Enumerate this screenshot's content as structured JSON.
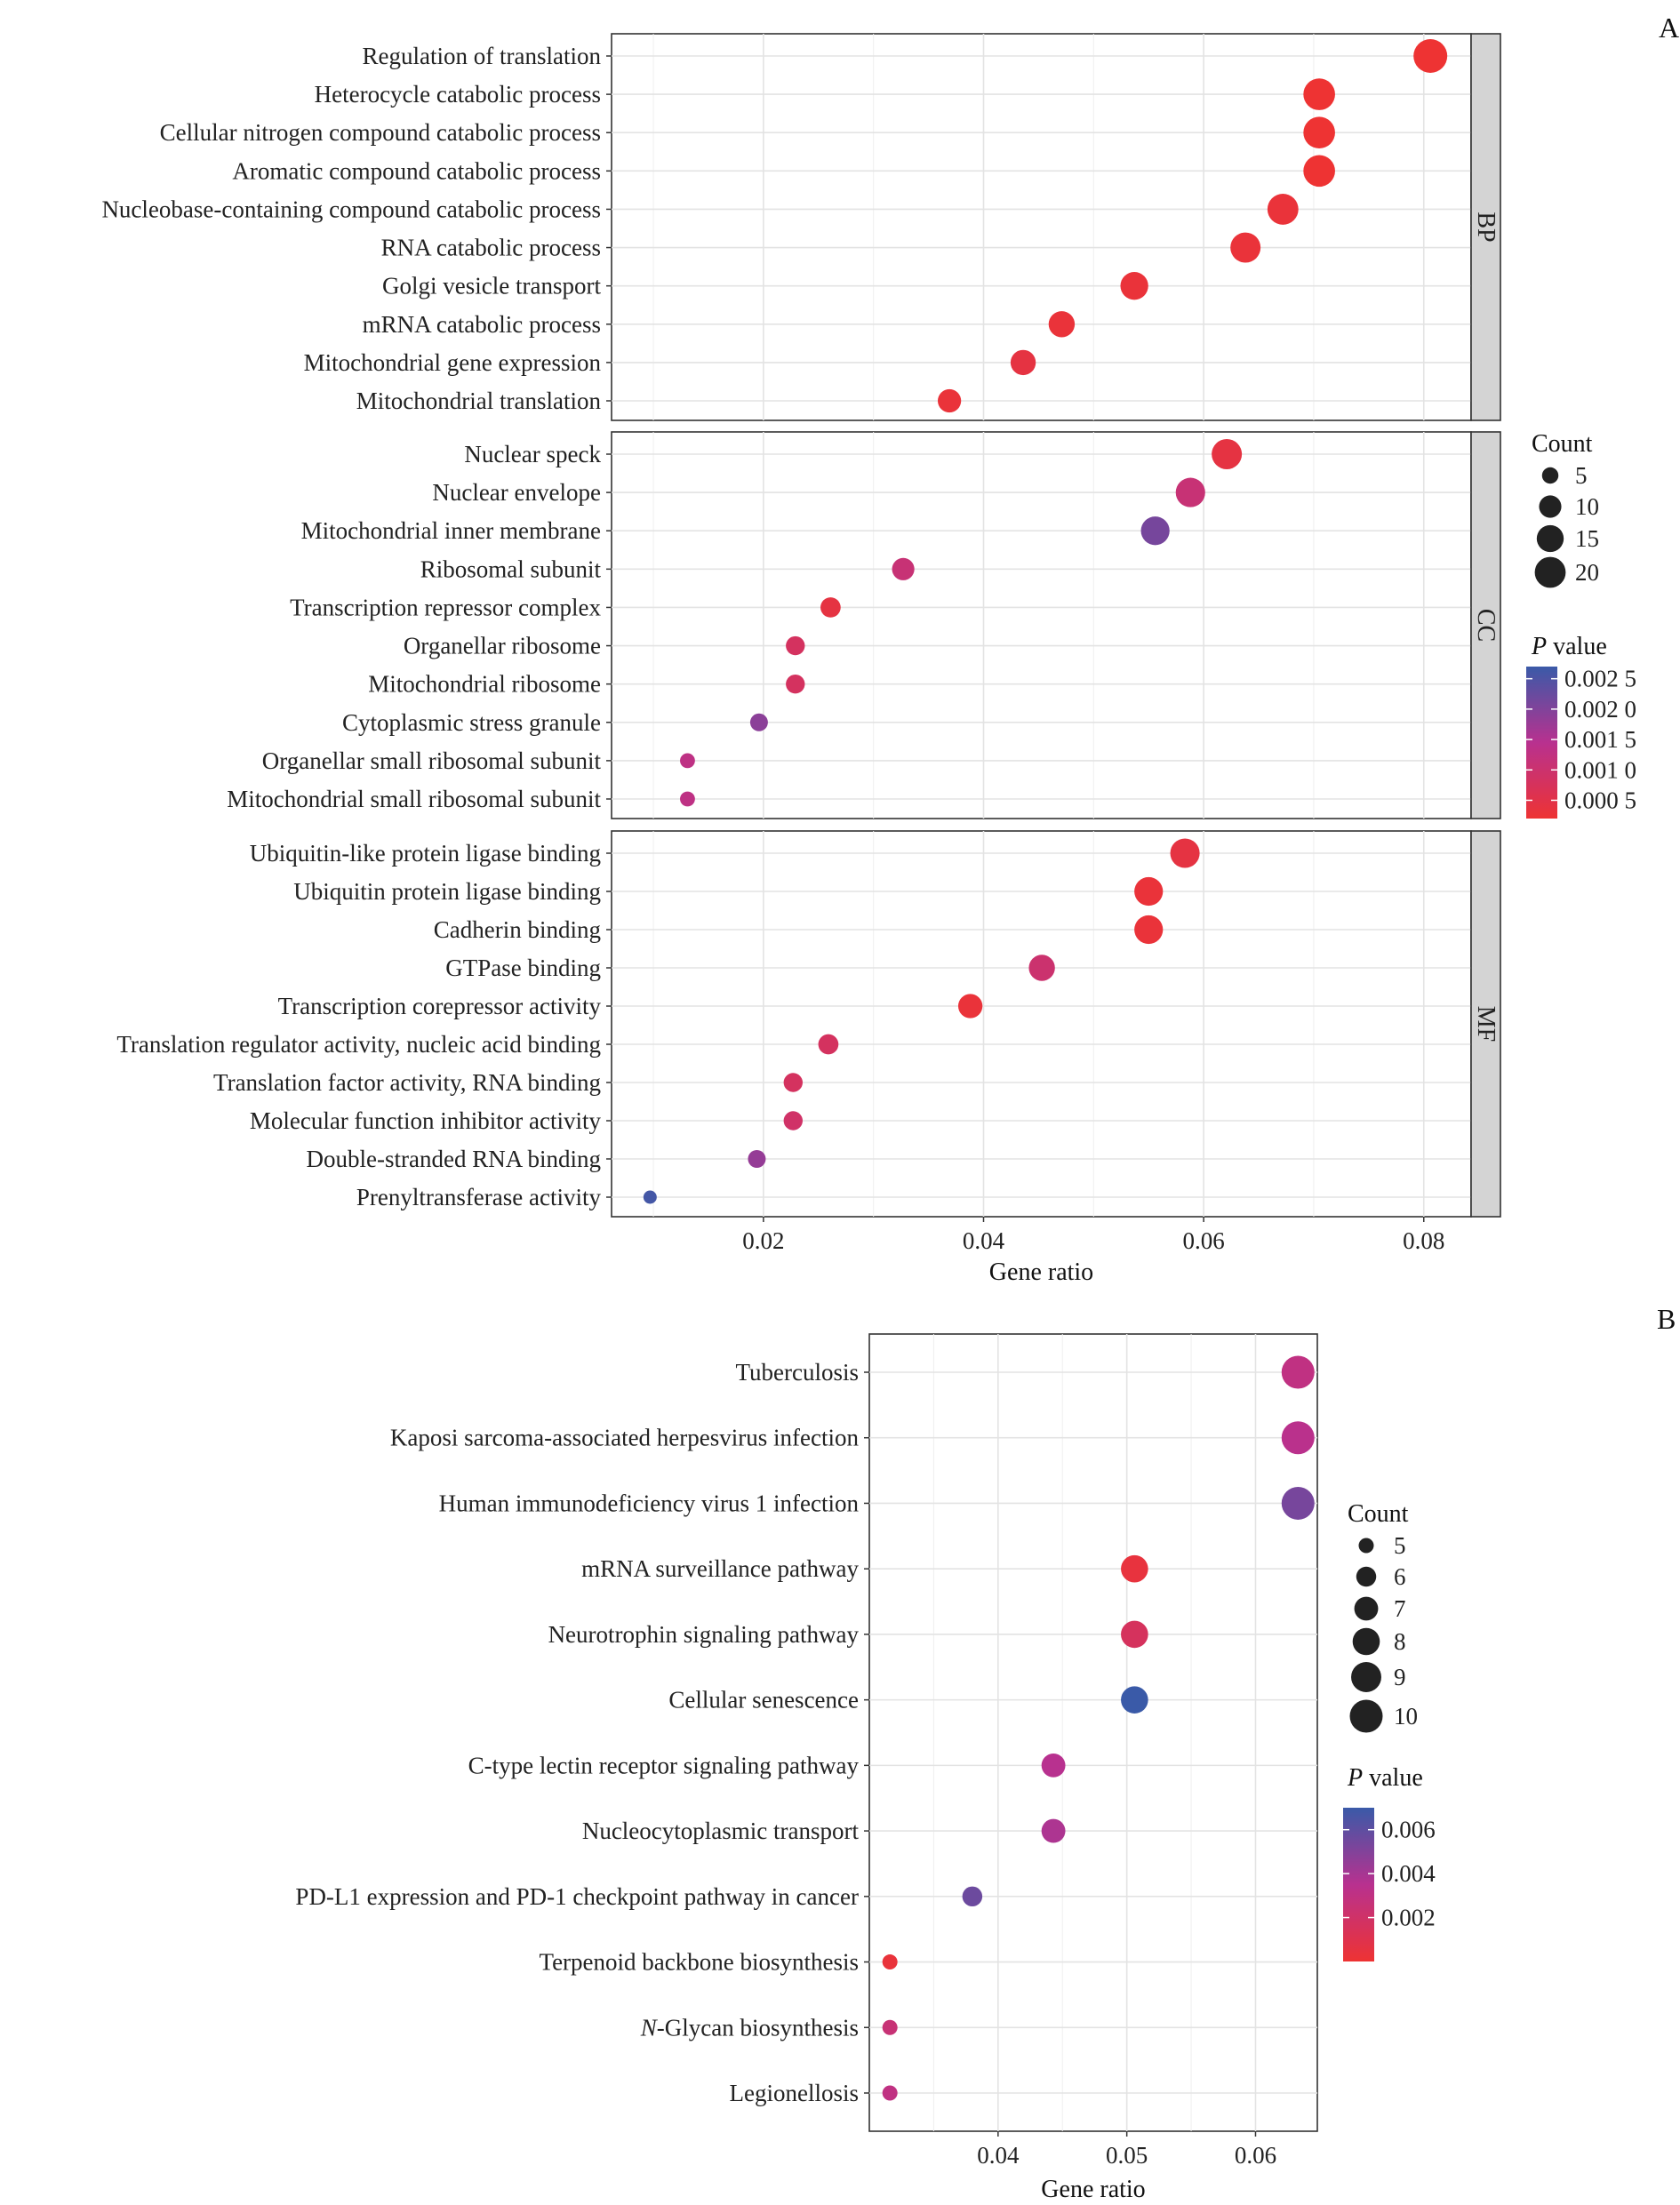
{
  "panel_labels": {
    "a": "A",
    "b": "B"
  },
  "chart_data": [
    {
      "type": "scatter",
      "subtype": "dot-plot-faceted",
      "panel": "A",
      "xlabel": "Gene ratio",
      "xlim": [
        0.0062,
        0.0843
      ],
      "xticks": [
        0.02,
        0.04,
        0.06,
        0.08
      ],
      "xtick_labels": [
        "0.02",
        "0.04",
        "0.06",
        "0.08"
      ],
      "grid": true,
      "legend_position": "right",
      "size_legend": {
        "title": "Count",
        "values": [
          5,
          10,
          15,
          20
        ],
        "labels": [
          "5",
          "10",
          "15",
          "20"
        ]
      },
      "color_legend": {
        "title": "P value",
        "range": [
          0.0002,
          0.0027
        ],
        "ticks": [
          0.0025,
          0.002,
          0.0015,
          0.001,
          0.0005
        ],
        "tick_labels": [
          "0.002 5",
          "0.002 0",
          "0.001 5",
          "0.001 0",
          "0.000 5"
        ],
        "low_color": "#ee3333",
        "mid_color": "#b8318f",
        "high_color": "#3a5aa8"
      },
      "facets": [
        {
          "strip": "BP",
          "terms": [
            {
              "label": "Regulation of translation",
              "gene_ratio": 0.0806,
              "count": 24,
              "p_value": 0.0002
            },
            {
              "label": "Heterocycle catabolic process",
              "gene_ratio": 0.0705,
              "count": 21,
              "p_value": 0.0002
            },
            {
              "label": "Cellular nitrogen compound catabolic process",
              "gene_ratio": 0.0705,
              "count": 21,
              "p_value": 0.0002
            },
            {
              "label": "Aromatic compound catabolic process",
              "gene_ratio": 0.0705,
              "count": 21,
              "p_value": 0.0002
            },
            {
              "label": "Nucleobase-containing compound catabolic process",
              "gene_ratio": 0.0672,
              "count": 20,
              "p_value": 0.0003
            },
            {
              "label": "RNA catabolic process",
              "gene_ratio": 0.0638,
              "count": 19,
              "p_value": 0.0003
            },
            {
              "label": "Golgi vesicle transport",
              "gene_ratio": 0.0537,
              "count": 16,
              "p_value": 0.0003
            },
            {
              "label": "mRNA catabolic process",
              "gene_ratio": 0.0471,
              "count": 14,
              "p_value": 0.0003
            },
            {
              "label": "Mitochondrial gene expression",
              "gene_ratio": 0.0436,
              "count": 13,
              "p_value": 0.0004
            },
            {
              "label": "Mitochondrial translation",
              "gene_ratio": 0.0369,
              "count": 11,
              "p_value": 0.0003
            }
          ]
        },
        {
          "strip": "CC",
          "terms": [
            {
              "label": "Nuclear speck",
              "gene_ratio": 0.0621,
              "count": 19,
              "p_value": 0.0004
            },
            {
              "label": "Nuclear envelope",
              "gene_ratio": 0.0588,
              "count": 18,
              "p_value": 0.0011
            },
            {
              "label": "Mitochondrial inner membrane",
              "gene_ratio": 0.0556,
              "count": 17,
              "p_value": 0.0021
            },
            {
              "label": "Ribosomal subunit",
              "gene_ratio": 0.0327,
              "count": 10,
              "p_value": 0.0011
            },
            {
              "label": "Transcription repressor complex",
              "gene_ratio": 0.0261,
              "count": 8,
              "p_value": 0.0004
            },
            {
              "label": "Organellar ribosome",
              "gene_ratio": 0.0229,
              "count": 7,
              "p_value": 0.0008
            },
            {
              "label": "Mitochondrial ribosome",
              "gene_ratio": 0.0229,
              "count": 7,
              "p_value": 0.0008
            },
            {
              "label": "Cytoplasmic stress granule",
              "gene_ratio": 0.0196,
              "count": 6,
              "p_value": 0.0019
            },
            {
              "label": "Organellar small ribosomal subunit",
              "gene_ratio": 0.0131,
              "count": 4,
              "p_value": 0.0013
            },
            {
              "label": "Mitochondrial small ribosomal subunit",
              "gene_ratio": 0.0131,
              "count": 4,
              "p_value": 0.0013
            }
          ]
        },
        {
          "strip": "MF",
          "terms": [
            {
              "label": "Ubiquitin-like protein ligase binding",
              "gene_ratio": 0.0583,
              "count": 18,
              "p_value": 0.0004
            },
            {
              "label": "Ubiquitin protein ligase binding",
              "gene_ratio": 0.055,
              "count": 17,
              "p_value": 0.0003
            },
            {
              "label": "Cadherin binding",
              "gene_ratio": 0.055,
              "count": 17,
              "p_value": 0.0003
            },
            {
              "label": "GTPase binding",
              "gene_ratio": 0.0453,
              "count": 14,
              "p_value": 0.001
            },
            {
              "label": "Transcription corepressor activity",
              "gene_ratio": 0.0388,
              "count": 12,
              "p_value": 0.0003
            },
            {
              "label": "Translation regulator activity, nucleic acid binding",
              "gene_ratio": 0.0259,
              "count": 8,
              "p_value": 0.0008
            },
            {
              "label": "Translation factor activity, RNA binding",
              "gene_ratio": 0.0227,
              "count": 7,
              "p_value": 0.0008
            },
            {
              "label": "Molecular function inhibitor activity",
              "gene_ratio": 0.0227,
              "count": 7,
              "p_value": 0.0009
            },
            {
              "label": "Double-stranded RNA binding",
              "gene_ratio": 0.0194,
              "count": 6,
              "p_value": 0.0018
            },
            {
              "label": "Prenyltransferase activity",
              "gene_ratio": 0.0097,
              "count": 3,
              "p_value": 0.0026
            }
          ]
        }
      ]
    },
    {
      "type": "scatter",
      "subtype": "dot-plot",
      "panel": "B",
      "xlabel": "Gene ratio",
      "xlim": [
        0.03,
        0.0648
      ],
      "xticks": [
        0.04,
        0.05,
        0.06
      ],
      "xtick_labels": [
        "0.04",
        "0.05",
        "0.06"
      ],
      "grid": true,
      "legend_position": "right",
      "size_legend": {
        "title": "Count",
        "values": [
          5,
          6,
          7,
          8,
          9,
          10
        ],
        "labels": [
          "5",
          "6",
          "7",
          "8",
          "9",
          "10"
        ]
      },
      "color_legend": {
        "title": "P value",
        "range": [
          0.0,
          0.007
        ],
        "ticks": [
          0.006,
          0.004,
          0.002
        ],
        "tick_labels": [
          "0.006",
          "0.004",
          "0.002"
        ],
        "low_color": "#ee3333",
        "mid_color": "#b8318f",
        "high_color": "#3a5aa8"
      },
      "terms": [
        {
          "label": "Tuberculosis",
          "gene_ratio": 0.0633,
          "count": 10,
          "p_value": 0.003
        },
        {
          "label": "Kaposi sarcoma-associated herpesvirus infection",
          "gene_ratio": 0.0633,
          "count": 10,
          "p_value": 0.0034
        },
        {
          "label": "Human immunodeficiency virus 1 infection",
          "gene_ratio": 0.0633,
          "count": 10,
          "p_value": 0.0053
        },
        {
          "label": "mRNA surveillance pathway",
          "gene_ratio": 0.0506,
          "count": 8,
          "p_value": 0.0004
        },
        {
          "label": "Neurotrophin signaling pathway",
          "gene_ratio": 0.0506,
          "count": 8,
          "p_value": 0.0016
        },
        {
          "label": "Cellular senescence",
          "gene_ratio": 0.0506,
          "count": 8,
          "p_value": 0.007
        },
        {
          "label": "C-type lectin receptor signaling pathway",
          "gene_ratio": 0.0443,
          "count": 7,
          "p_value": 0.0035
        },
        {
          "label": "Nucleocytoplasmic transport",
          "gene_ratio": 0.0443,
          "count": 7,
          "p_value": 0.0038
        },
        {
          "label": "PD-L1 expression and PD-1 checkpoint pathway in cancer",
          "gene_ratio": 0.038,
          "count": 6,
          "p_value": 0.0056
        },
        {
          "label": "Terpenoid backbone biosynthesis",
          "gene_ratio": 0.0316,
          "count": 5,
          "p_value": 0.0003
        },
        {
          "label": "N-Glycan biosynthesis",
          "gene_ratio": 0.0316,
          "count": 5,
          "p_value": 0.0025
        },
        {
          "label": "Legionellosis",
          "gene_ratio": 0.0316,
          "count": 5,
          "p_value": 0.003
        }
      ]
    }
  ]
}
